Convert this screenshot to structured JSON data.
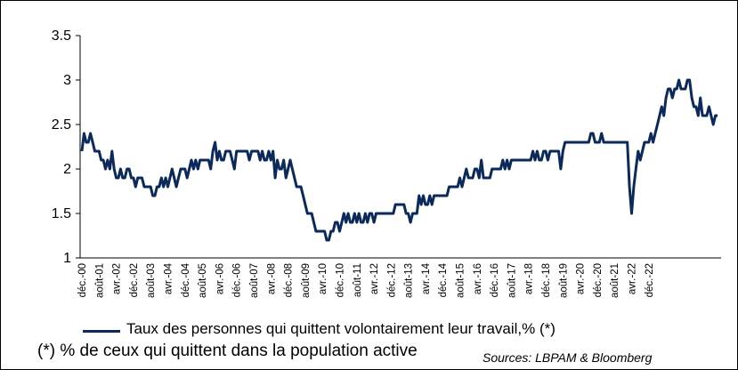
{
  "chart_data": {
    "type": "line",
    "title": "",
    "xlabel": "",
    "ylabel": "",
    "ylim": [
      1,
      3.5
    ],
    "yticks": [
      "3.5",
      "3",
      "2.5",
      "2",
      "1.5",
      "1"
    ],
    "ytick_values": [
      3.5,
      3,
      2.5,
      2,
      1.5,
      1
    ],
    "xticks": [
      "déc.-00",
      "août-01",
      "avr.-02",
      "déc.-02",
      "août-03",
      "avr.-04",
      "déc.-04",
      "août-05",
      "avr.-06",
      "déc.-06",
      "août-07",
      "avr.-08",
      "déc.-08",
      "août-09",
      "avr.-10",
      "déc.-10",
      "août-11",
      "avr.-12",
      "déc.-12",
      "août-13",
      "avr.-14",
      "déc.-14",
      "août-15",
      "avr.-16",
      "déc.-16",
      "août-17",
      "avr.-18",
      "déc.-18",
      "août-19",
      "avr.-20",
      "déc.-20",
      "août-21",
      "avr.-22",
      "déc.-22"
    ],
    "grid": false,
    "legend_position": "bottom",
    "series": [
      {
        "name": "Taux des personnes qui quittent volontairement leur travail,% (*)",
        "color": "#0b2a5b",
        "values": [
          2.2,
          2.4,
          2.3,
          2.3,
          2.4,
          2.3,
          2.2,
          2.2,
          2.2,
          2.1,
          2.1,
          2.0,
          2.1,
          2.0,
          2.2,
          2.0,
          1.9,
          1.9,
          2.0,
          1.9,
          1.9,
          2.0,
          2.0,
          1.9,
          1.9,
          1.8,
          1.9,
          1.9,
          1.9,
          1.8,
          1.8,
          1.8,
          1.8,
          1.7,
          1.7,
          1.8,
          1.8,
          1.9,
          1.8,
          1.9,
          1.8,
          1.9,
          2.0,
          1.9,
          1.8,
          1.9,
          2.0,
          2.0,
          2.0,
          1.9,
          2.0,
          2.1,
          2.0,
          2.1,
          2.0,
          2.1,
          2.1,
          2.1,
          2.1,
          2.1,
          2.0,
          2.2,
          2.3,
          2.1,
          2.2,
          2.1,
          2.1,
          2.2,
          2.2,
          2.2,
          2.1,
          2.0,
          2.2,
          2.2,
          2.2,
          2.2,
          2.2,
          2.2,
          2.1,
          2.2,
          2.2,
          2.2,
          2.2,
          2.1,
          2.2,
          2.1,
          2.1,
          2.2,
          2.1,
          2.2,
          1.9,
          2.1,
          2.0,
          2.0,
          2.1,
          1.9,
          2.0,
          2.1,
          2.0,
          1.9,
          1.8,
          1.8,
          1.8,
          1.7,
          1.6,
          1.5,
          1.5,
          1.5,
          1.4,
          1.3,
          1.3,
          1.3,
          1.3,
          1.3,
          1.2,
          1.2,
          1.3,
          1.3,
          1.4,
          1.4,
          1.3,
          1.4,
          1.5,
          1.4,
          1.5,
          1.4,
          1.4,
          1.5,
          1.4,
          1.5,
          1.4,
          1.4,
          1.5,
          1.4,
          1.5,
          1.5,
          1.4,
          1.5,
          1.5,
          1.5,
          1.5,
          1.5,
          1.5,
          1.5,
          1.5,
          1.5,
          1.6,
          1.6,
          1.6,
          1.6,
          1.6,
          1.5,
          1.5,
          1.4,
          1.5,
          1.5,
          1.5,
          1.7,
          1.6,
          1.7,
          1.6,
          1.6,
          1.7,
          1.6,
          1.7,
          1.7,
          1.7,
          1.7,
          1.7,
          1.7,
          1.7,
          1.8,
          1.8,
          1.8,
          1.8,
          1.8,
          1.9,
          1.8,
          1.9,
          2.0,
          1.9,
          1.9,
          1.9,
          2.0,
          2.0,
          1.9,
          2.1,
          1.9,
          1.9,
          1.9,
          1.9,
          2.0,
          2.0,
          2.0,
          2.0,
          2.0,
          2.1,
          2.0,
          2.1,
          2.0,
          2.1,
          2.1,
          2.1,
          2.1,
          2.1,
          2.1,
          2.1,
          2.1,
          2.1,
          2.1,
          2.2,
          2.1,
          2.2,
          2.1,
          2.1,
          2.2,
          2.2,
          2.1,
          2.2,
          2.2,
          2.2,
          2.2,
          2.2,
          2.0,
          2.2,
          2.3,
          2.3,
          2.3,
          2.3,
          2.3,
          2.3,
          2.3,
          2.3,
          2.3,
          2.3,
          2.3,
          2.3,
          2.4,
          2.4,
          2.3,
          2.3,
          2.3,
          2.4,
          2.3,
          2.3,
          2.3,
          2.3,
          2.3,
          2.3,
          2.3,
          2.3,
          2.3,
          2.3,
          2.3,
          2.3,
          1.8,
          1.5,
          1.8,
          2.0,
          2.2,
          2.1,
          2.2,
          2.3,
          2.3,
          2.3,
          2.4,
          2.3,
          2.4,
          2.5,
          2.6,
          2.7,
          2.6,
          2.8,
          2.9,
          2.9,
          2.8,
          2.9,
          2.9,
          3.0,
          2.9,
          2.9,
          2.9,
          3.0,
          3.0,
          2.8,
          2.7,
          2.7,
          2.6,
          2.8,
          2.6,
          2.6,
          2.6,
          2.7,
          2.6,
          2.5,
          2.6,
          2.6
        ]
      }
    ],
    "legend_label": "Taux des personnes qui quittent volontairement leur travail,% (*)"
  },
  "footnote": "(*) % de ceux qui quittent dans la population active",
  "source": "Sources: LBPAM & Bloomberg"
}
